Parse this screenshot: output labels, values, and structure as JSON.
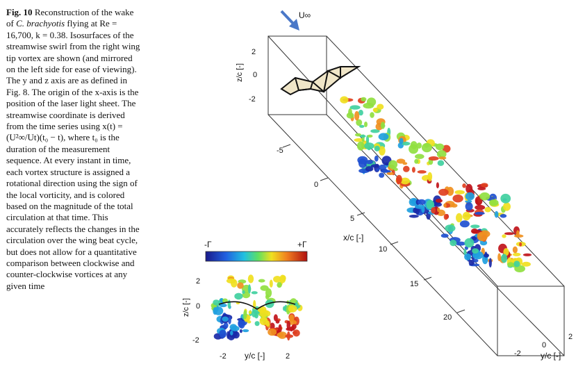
{
  "caption": {
    "label": "Fig. 10",
    "text_1": " Reconstruction of the wake of ",
    "species": "C. brachyotis",
    "text_2": " flying at ",
    "params": "Re = 16,700, k = 0.38.",
    "text_3": " Isosurfaces of the streamwise swirl from the right wing tip vortex are shown (and mirrored on the left side for ease of viewing). The y and z axis are as defined in Fig. 8. The origin of the x-axis is the position of the laser light sheet. The streamwise coordinate is derived from the time series using x(t) = (U²∞/Ut)(t₀ − t), where t₀ is the duration of the measurement sequence. At every instant in time, each vortex structure is assigned a rotational direction using the sign of the local vorticity, and is colored based on the magnitude of the total circulation at that time. This accurately reflects the changes in the circulation over the wing beat cycle, but does not allow for a quantitative comparison between clockwise and counter-clockwise vortices at any given time"
  },
  "figure": {
    "freestream_label": "U∞",
    "z_axis_label": "z/c [-]",
    "z_ticks": [
      "2",
      "0",
      "-2"
    ],
    "x_axis_label": "x/c [-]",
    "x_ticks": [
      "-5",
      "0",
      "5",
      "10",
      "15",
      "20"
    ],
    "y_axis_label": "y/c [-]",
    "y_ticks": [
      "-2",
      "0",
      "2"
    ],
    "colorbar": {
      "min_label": "-Γ",
      "max_label": "+Γ"
    },
    "inset": {
      "z_axis_label": "z/c [-]",
      "z_ticks": [
        "2",
        "0",
        "-2"
      ],
      "y_axis_label": "y/c [-]",
      "y_ticks": [
        "-2",
        "2"
      ]
    },
    "colors": {
      "negative": "#1a2aa8",
      "neutral": "#f0e020",
      "positive": "#c0141a",
      "wing": "#f0e6c8"
    }
  }
}
